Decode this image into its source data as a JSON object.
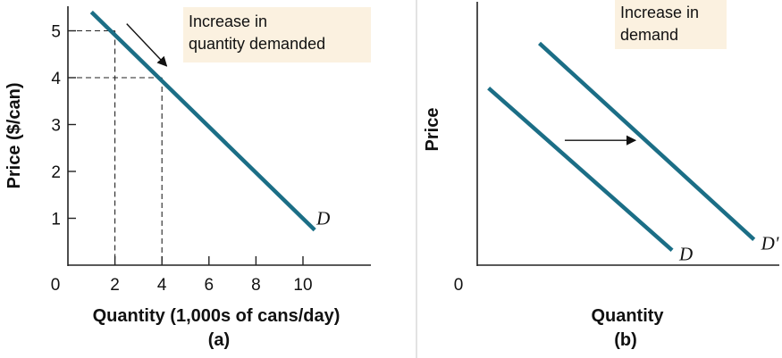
{
  "chart_data": [
    {
      "panel": "(a)",
      "type": "line",
      "xlabel": "Quantity (1,000s of cans/day)",
      "ylabel": "Price ($/can)",
      "origin_label": "0",
      "xlim": [
        0,
        12
      ],
      "ylim": [
        0,
        5.5
      ],
      "x_ticks": [
        2,
        4,
        6,
        8,
        10
      ],
      "x_tick_labels": [
        "2",
        "4",
        "6",
        "8",
        "10"
      ],
      "y_ticks": [
        1,
        2,
        3,
        4,
        5
      ],
      "y_tick_labels": [
        "1",
        "2",
        "3",
        "4",
        "5"
      ],
      "grid": false,
      "series": [
        {
          "name": "D",
          "x": [
            1,
            10.5
          ],
          "y": [
            5.4,
            0.75
          ]
        }
      ],
      "highlight_points": [
        {
          "x": 2,
          "y": 5
        },
        {
          "x": 4,
          "y": 4
        }
      ],
      "annotation": {
        "text_lines": [
          "Increase in",
          "quantity demanded"
        ],
        "arrow_from": {
          "x": 2.5,
          "y": 5.15
        },
        "arrow_to": {
          "x": 4.2,
          "y": 4.25
        }
      },
      "color": "#1b6e86"
    },
    {
      "panel": "(b)",
      "type": "line",
      "xlabel": "Quantity",
      "ylabel": "Price",
      "origin_label": "0",
      "xlim": [
        0,
        10
      ],
      "ylim": [
        0,
        10
      ],
      "grid": false,
      "series": [
        {
          "name": "D",
          "x": [
            0.4,
            6.9
          ],
          "y": [
            8.3,
            0.7
          ]
        },
        {
          "name": "D'",
          "x": [
            2.2,
            9.8
          ],
          "y": [
            10.4,
            1.2
          ]
        }
      ],
      "annotation": {
        "text_lines": [
          "Increase in",
          "demand"
        ],
        "arrow_from": {
          "x": 3.1,
          "y": 5.85
        },
        "arrow_to": {
          "x": 5.6,
          "y": 5.85
        }
      },
      "color": "#1b6e86"
    }
  ]
}
